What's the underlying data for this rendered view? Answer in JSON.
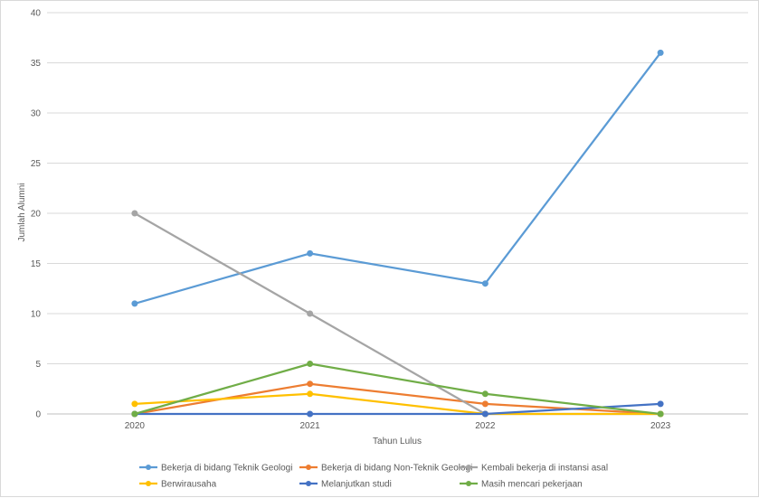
{
  "chart_data": {
    "type": "line",
    "title": "",
    "xlabel": "Tahun Lulus",
    "ylabel": "Jumlah Alumni",
    "x": [
      "2020",
      "2021",
      "2022",
      "2023"
    ],
    "ylim": [
      0,
      40
    ],
    "yticks": [
      0,
      5,
      10,
      15,
      20,
      25,
      30,
      35,
      40
    ],
    "grid": true,
    "legend_position": "bottom",
    "series": [
      {
        "name": "Bekerja di bidang Teknik Geologi",
        "color": "#5b9bd5",
        "values": [
          11,
          16,
          13,
          36
        ]
      },
      {
        "name": "Bekerja di bidang Non-Teknik Geologi",
        "color": "#ed7d31",
        "values": [
          0,
          3,
          1,
          0
        ]
      },
      {
        "name": "Kembali bekerja di instansi asal",
        "color": "#a5a5a5",
        "values": [
          20,
          10,
          0,
          0
        ]
      },
      {
        "name": "Berwirausaha",
        "color": "#ffc000",
        "values": [
          1,
          2,
          0,
          0
        ]
      },
      {
        "name": "Melanjutkan studi",
        "color": "#4472c4",
        "values": [
          0,
          0,
          0,
          1
        ]
      },
      {
        "name": "Masih mencari pekerjaan",
        "color": "#70ad47",
        "values": [
          0,
          5,
          2,
          0
        ]
      }
    ]
  }
}
